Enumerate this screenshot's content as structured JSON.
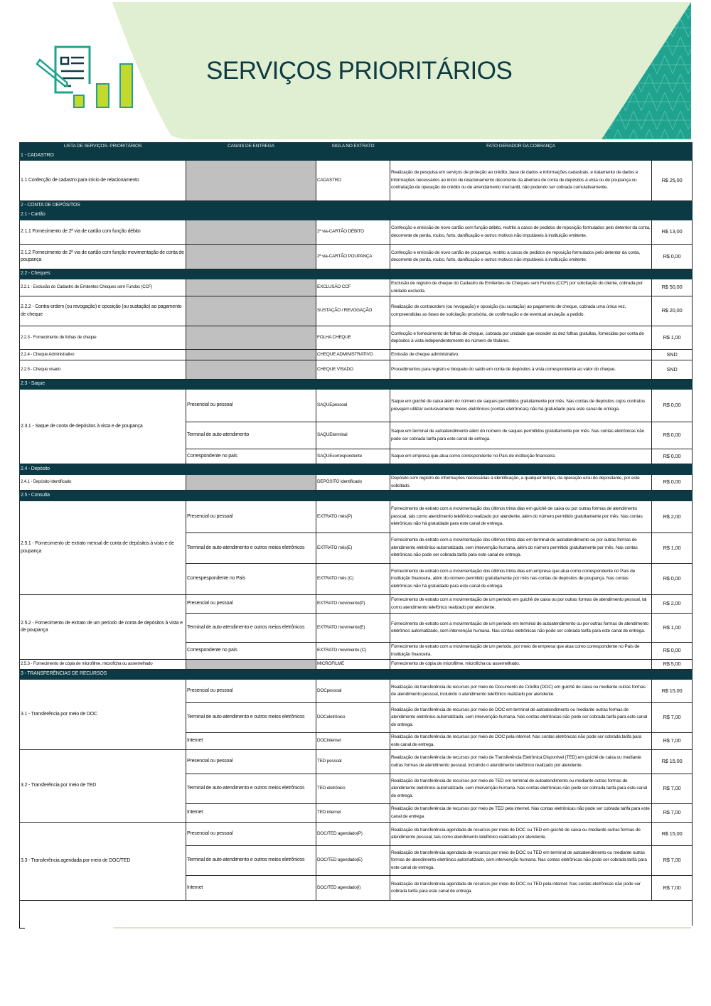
{
  "header": {
    "title": "SERVIÇOS PRIORITÁRIOS",
    "logo_icon": "document-chart-pencil-icon",
    "colors": {
      "dark_teal": "#0b3a45",
      "light_green": "#e0eed2",
      "teal": "#1fa38f",
      "lime": "#c3d92b",
      "gray_cell": "#c0c0c0"
    }
  },
  "table": {
    "columns": [
      "LISTA DE SERVIÇOS- PRIORITÁRIOS",
      "CANAIS DE ENTREGA",
      "SIGLA NO EXTRATO",
      "FATO GERADOR DA COBRANÇA",
      ""
    ],
    "rows": [
      {
        "type": "section",
        "label": "1 - CADASTRO"
      },
      {
        "type": "item",
        "name": "1.1 Confecção de cadastro para início de relacionamento",
        "channels": [
          {
            "canal": "",
            "sigla": "CADASTRO",
            "fato": "Realização de pesquisa em serviços de proteção ao crédito, base de dados e informações cadastrais, e tratamento de dados e informações necessários ao início de relacionamento decorrente da abertura de conta de depósitos à vista ou de poupança ou contratação de operação de crédito ou de arrendamento mercantil, não podendo ser cobrada cumulativamente.",
            "valor": "R$ 25,00"
          }
        ]
      },
      {
        "type": "section",
        "label": "2 - CONTA DE DEPÓSITOS"
      },
      {
        "type": "section",
        "label": "2.1 - Cartão"
      },
      {
        "type": "item",
        "name": "2.1.1 Fornecimento de 2ª via de cartão com função débito",
        "channels": [
          {
            "canal": "",
            "sigla": "2ª via-CARTÃO DÉBITO",
            "fato": "Confecção e emissão de novo cartão com função débito, restrito a casos de pedidos de reposição formulados pelo detentor da conta, decorrente de perda, roubo, furto, danificação e outros motivos não imputáveis à instituição emitente.",
            "valor": "R$ 13,00"
          }
        ]
      },
      {
        "type": "item",
        "name": "2.1.2 Fornecimento de 2ª via de cartão com função movimentação de conta de poupança",
        "channels": [
          {
            "canal": "",
            "sigla": "2ª via-CARTÃO POUPANÇA",
            "fato": "Confecção e emissão de novo cartão de poupança, restrito a casos de pedidos de reposição formulados pelo detentor da conta, decorrente de perda, roubo, furto, danificação e outros motivos não imputáveis à instituição emitente.",
            "valor": "R$ 0,00"
          }
        ]
      },
      {
        "type": "section",
        "label": "2.2 - Cheques"
      },
      {
        "type": "item",
        "name": "2.2.1 - Exclusão do Cadastro de Emitentes Cheques sem Fundos (CCF)",
        "small": true,
        "channels": [
          {
            "canal": "",
            "sigla": "EXCLUSÃO CCF",
            "fato": "Exclusão de registro de cheque do Cadastro de Emitentes de Cheques sem Fundos (CCF) por solicitação do cliente, cobrada por unidade excluída.",
            "valor": "R$ 50,00"
          }
        ]
      },
      {
        "type": "item",
        "name": "2.2.2 - Contra-ordem (ou revogação) e oposição (ou sustação) ao pagamento de cheque",
        "channels": [
          {
            "canal": "",
            "sigla": "SUSTAÇÃO / REVOGAÇÃO",
            "fato": "Realização de contraordem (ou revogação) e oposição (ou sustação) ao pagamento de cheque, cobrada uma única vez, compreendidas as fases de solicitação provisória, de confirmação e de eventual anulação a pedido.",
            "valor": "R$ 20,00"
          }
        ]
      },
      {
        "type": "item",
        "name": "2.2.3 - Fornecimento de folhas de cheque",
        "small": true,
        "channels": [
          {
            "canal": "",
            "sigla": "FOLHA CHEQUE",
            "fato": "Confecção e fornecimento de folhas de cheque, cobrada por unidade que exceder as dez folhas gratuitas, fornecidas por conta de depósitos à vista independentemente do número de titulares.",
            "valor": "R$ 1,00"
          }
        ]
      },
      {
        "type": "item",
        "name": "2.2.4 - Cheque Administrativo",
        "small": true,
        "channels": [
          {
            "canal": "",
            "sigla": "CHEQUE ADMINISTRATIVO",
            "fato": "Emissão de cheque administrativo.",
            "valor": "SND"
          }
        ]
      },
      {
        "type": "item",
        "name": "2.2.5 - Cheque visado",
        "small": true,
        "channels": [
          {
            "canal": "",
            "sigla": "CHEQUE VISADO",
            "fato": "Procedimentos para registro e bloqueio do saldo em conta de depósitos à vista correspondente ao valor do cheque.",
            "valor": "SND"
          }
        ]
      },
      {
        "type": "section",
        "label": "2.3 - Saque"
      },
      {
        "type": "item",
        "name": "2.3.1 - Saque de conta de depósitos à vista e de poupança",
        "channels": [
          {
            "canal": "Presencial ou pessoal",
            "sigla": "SAQUEpessoal",
            "fato": "Saque em guichê de caixa além do número de saques permitidos gratuitamente por mês. Nas contas de depósitos cujos contratos prevejam utilizar exclusivamente meios eletrônicos (contas eletrônicas) não há gratuidade para este canal de entrega.",
            "valor": "R$ 0,00"
          },
          {
            "canal": "Terminal de auto-atendimento",
            "sigla": "SAQUEterminal",
            "fato": "Saque em terminal de autoatendimento além do número de saques permitidos gratuitamente por mês. Nas contas eletrônicas não pode ser cobrada tarifa para este canal de entrega.",
            "valor": "R$ 0,00"
          },
          {
            "canal": "Correspondente no país",
            "sigla": "SAQUEcorrespondente",
            "fato": "Saque em empresa que atua como correspondente no País de instituição financeira.",
            "valor": "R$ 0,00"
          }
        ]
      },
      {
        "type": "section",
        "label": "2.4 - Depósito"
      },
      {
        "type": "item",
        "name": "2.4.1 - Depósito Identificado",
        "small": true,
        "channels": [
          {
            "canal": "",
            "sigla": "DEPÓSITO identificado",
            "fato": "Depósito com registro de informações necessárias à identificação, a qualquer tempo, da operação e/ou do depositante, por este solicitado.",
            "valor": "R$ 0,00"
          }
        ]
      },
      {
        "type": "section",
        "label": "2.5 - Consulta"
      },
      {
        "type": "item",
        "name": "2.5.1 - Fornecimento de extrato mensal de conta de depósitos à vista e de poupança",
        "channels": [
          {
            "canal": "Presencial ou pessoal",
            "sigla": "EXTRATO mês(P)",
            "fato": "Fornecimento de extrato com a movimentação dos últimos trinta dias em guichê de caixa ou por outras formas de atendimento pessoal, tais como atendimento telefônico realizado por atendente, além do número permitido gratuitamente por mês. Nas contas eletrônicas não há gratuidade para este canal de entrega.",
            "valor": "R$ 2,00"
          },
          {
            "canal": "Terminal de auto-atendimento e outros meios eletrônicos",
            "sigla": "EXTRATO mês(E)",
            "fato": "Fornecimento de extrato com a movimentação dos últimos trinta dias em terminal de autoatendimento ou por outras formas de atendimento eletrônico automatizado, sem intervenção humana, além do número permitido gratuitamente por mês. Nas contas eletrônicas não pode ser cobrada tarifa para este canal de entrega.",
            "valor": "R$ 1,00"
          },
          {
            "canal": "Correspespondente no País",
            "sigla": "EXTRATO mês (C)",
            "fato": "Fornecimento de extrato com a movimentação dos últimos trinta dias em empresa que atua como correspondente no País de instituição financeira, além do número permitido gratuitamente por mês nas contas de depósitos de poupança. Nas contas eletrônicas não há gratuidade para este canal de entrega.",
            "valor": "R$ 0,00"
          }
        ]
      },
      {
        "type": "item",
        "name": "2.5.2 - Fornecimento de extrato de um período de conta de depósitos à vista e de poupança",
        "channels": [
          {
            "canal": "Presencial ou pessoal",
            "sigla": "EXTRATO movimento(P)",
            "fato": "Fornecimento de extrato com a movimentação de um período em guichê de caixa ou por outras formas de atendimento pessoal, tal como atendimento telefônico realizado por atendente.",
            "valor": "R$ 2,00"
          },
          {
            "canal": "Terminal de auto-atendimento e outros meios eletrônicos",
            "sigla": "EXTRATO movimento(E)",
            "fato": "Fornecimento de extrato com a movimentação de um período em terminal de autoatendimento ou por outras formas de atendimento eletrônico automatizado, sem intervenção humana. Nas contas eletrônicas não pode ser cobrada tarifa para este canal de entrega.",
            "valor": "R$ 1,00"
          },
          {
            "canal": "Correspondente no país",
            "sigla": "EXTRATO movimento (C)",
            "fato": "Fornecimento de extrato com a movimentação de um período, por meio de empresa que atua como correspondente no País de instituição financeira.",
            "valor": "R$ 0,00"
          }
        ]
      },
      {
        "type": "item",
        "name": "2.5.3 - Fornecimento de cópia de microfilme, microficha ou assemelhado",
        "small": true,
        "channels": [
          {
            "canal": "",
            "sigla": "MICROFILME",
            "fato": "Fornecimento de cópia de microfilme, microficha ou assemelhado.",
            "valor": "R$ 5,00"
          }
        ]
      },
      {
        "type": "section",
        "label": "3 - TRANSFERÊNCIAS DE RECURSOS"
      },
      {
        "type": "item",
        "name": "3.1 - Transferência por meio de DOC",
        "channels": [
          {
            "canal": "Presencial ou pessoal",
            "sigla": "DOCpessoal",
            "fato": "Realização de transferência de recursos por meio de Documento de Crédito (DOC) em guichê de caixa ou mediante outras formas de atendimento pessoal, incluindo o atendimento telefônico realizado por atendente.",
            "valor": "R$ 15,00"
          },
          {
            "canal": "Terminal de auto-atendimento e outros meios eletrônicos",
            "sigla": "DOCeletrônico",
            "fato": "Realização de transferência de recursos por meio de DOC em terminal de autoatendimento ou mediante outras formas de atendimento eletrônico automatizado, sem intervenção humana. Nas contas eletrônicas não pode ser cobrada tarifa para este canal de entrega.",
            "valor": "R$ 7,00"
          },
          {
            "canal": "Internet",
            "sigla": "DOCinternet",
            "fato": "Realização de transferência de recursos por meio de DOC pela internet. Nas contas eletrônicas não pode ser cobrada tarifa para este canal de entrega.",
            "valor": "R$ 7,00"
          }
        ]
      },
      {
        "type": "item",
        "name": "3.2 - Transferência por meio de TED",
        "channels": [
          {
            "canal": "Presencial ou pessoal",
            "sigla": "TED pessoal",
            "fato": "Realização de transferência de recursos por meio de Transferência Eletrônica Disponível (TED) em guichê de caixa ou mediante outras formas de atendimento pessoal, incluindo o atendimento telefônico realizado por atendente.",
            "valor": "R$ 15,00"
          },
          {
            "canal": "Terminal de auto-atendimento e outros meios eletrônicos",
            "sigla": "TED eletrônico",
            "fato": "Realização de transferência de recursos por meio de TED em terminal de autoatendimento ou mediante outras formas de atendimento eletrônico automatizado, sem intervenção humana. Nas contas eletrônicas não pode ser cobrada tarifa para este canal de entrega.",
            "valor": "R$ 7,00"
          },
          {
            "canal": "Internet",
            "sigla": "TED internet",
            "fato": "Realização de transferência de recursos por meio de TED pela internet. Nas contas eletrônicas não pode ser cobrada tarifa para este canal de entrega.",
            "valor": "R$ 7,00"
          }
        ]
      },
      {
        "type": "item",
        "name": "3.3 - Transferência agendada por meio de DOC/TED",
        "channels": [
          {
            "canal": "Presencial ou pessoal",
            "sigla": "DOC/TED agendado(P)",
            "fato": "Realização de transferência agendada de recursos por meio de DOC ou TED em guichê de caixa ou mediante outras formas de atendimento pessoal, tais como atendimento telefônico realizado por atendente.",
            "valor": "R$ 15,00"
          },
          {
            "canal": "Terminal de auto-atendimento e outros meios eletrônicos",
            "sigla": "DOC/TED agendado(E)",
            "fato": "Realização de transferência agendada de recursos por meio de DOC ou TED em terminal de autoatendimento ou mediante outras formas de atendimento eletrônico automatizado, sem intervenção humana. Nas contas eletrônicas não pode ser cobrada tarifa para este canal de entrega.",
            "valor": "R$ 7,00"
          },
          {
            "canal": "Internet",
            "sigla": "DOC/TED agendado(I)",
            "fato": "Realização de transferência agendada de recursos por meio de DOC ou TED pela internet. Nas contas eletrônicas não pode ser cobrada tarifa para este canal de entrega.",
            "valor": "R$ 7,00"
          }
        ]
      }
    ]
  }
}
